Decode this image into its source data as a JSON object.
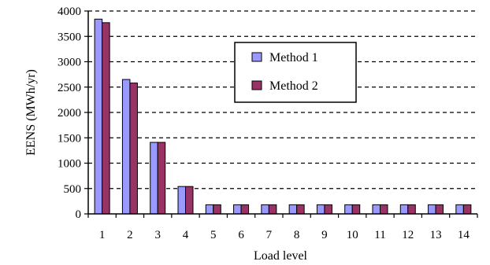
{
  "chart_data": {
    "type": "bar",
    "title": "",
    "xlabel": "Load level",
    "ylabel": "EENS (MWh/yr)",
    "ylim": [
      0,
      4000
    ],
    "yticks": [
      0,
      500,
      1000,
      1500,
      2000,
      2500,
      3000,
      3500,
      4000
    ],
    "grid": "horizontal dashed",
    "legend_position": "upper-right",
    "categories": [
      "1",
      "2",
      "3",
      "4",
      "5",
      "6",
      "7",
      "8",
      "9",
      "10",
      "11",
      "12",
      "13",
      "14"
    ],
    "series": [
      {
        "name": "Method 1",
        "color": "#9999ff",
        "values": [
          3840,
          2650,
          1410,
          540,
          180,
          180,
          180,
          180,
          180,
          180,
          180,
          180,
          180,
          180
        ]
      },
      {
        "name": "Method 2",
        "color": "#993366",
        "values": [
          3770,
          2580,
          1410,
          540,
          180,
          180,
          180,
          180,
          180,
          180,
          180,
          180,
          180,
          180
        ]
      }
    ]
  }
}
